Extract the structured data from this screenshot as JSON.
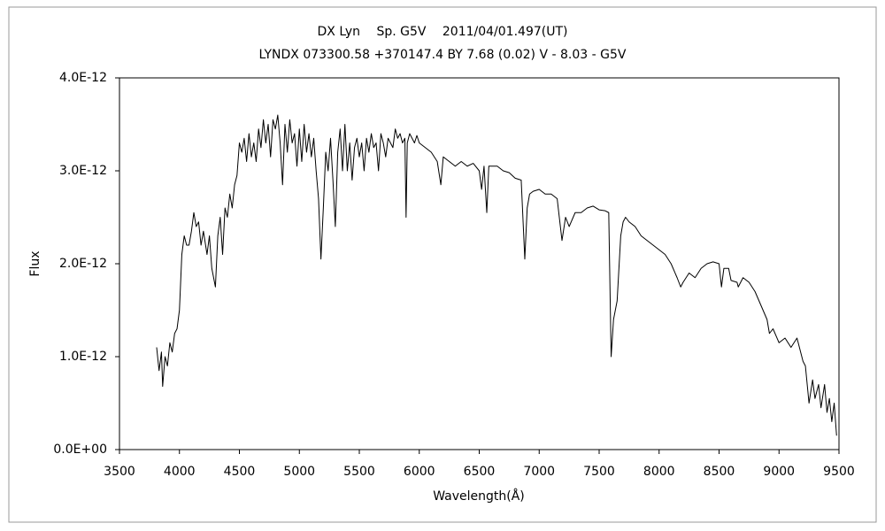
{
  "chart_data": {
    "type": "line",
    "title": "DX Lyn　 Sp. G5V　 2011/04/01.497(UT)",
    "subtitle": "LYNDX 073300.58 +370147.4 BY 7.68 (0.02) V - 8.03 - G5V",
    "x_label": "Wavelength(Å)",
    "y_label": "Flux",
    "color": "#000000",
    "grid": false,
    "xlim": [
      3500,
      9500
    ],
    "xticks": [
      3500,
      4000,
      4500,
      5000,
      5500,
      6000,
      6500,
      7000,
      7500,
      8000,
      8500,
      9000,
      9500
    ],
    "ylim": [
      0,
      4e-12
    ],
    "yticks": [
      {
        "value": 0,
        "label": "0.0E+00"
      },
      {
        "value": 1e-12,
        "label": "1.0E-12"
      },
      {
        "value": 2e-12,
        "label": "2.0E-12"
      },
      {
        "value": 3e-12,
        "label": "3.0E-12"
      },
      {
        "value": 4e-12,
        "label": "4.0E-12"
      }
    ],
    "x": [
      3810,
      3830,
      3850,
      3860,
      3880,
      3900,
      3920,
      3940,
      3960,
      3980,
      4000,
      4020,
      4040,
      4060,
      4080,
      4100,
      4120,
      4140,
      4160,
      4180,
      4200,
      4230,
      4250,
      4270,
      4300,
      4320,
      4340,
      4360,
      4380,
      4400,
      4420,
      4440,
      4460,
      4480,
      4500,
      4520,
      4540,
      4560,
      4580,
      4600,
      4620,
      4640,
      4660,
      4680,
      4700,
      4720,
      4740,
      4760,
      4780,
      4800,
      4820,
      4840,
      4860,
      4880,
      4900,
      4920,
      4940,
      4960,
      4980,
      5000,
      5020,
      5040,
      5060,
      5080,
      5100,
      5120,
      5140,
      5160,
      5180,
      5200,
      5220,
      5240,
      5260,
      5280,
      5300,
      5320,
      5340,
      5360,
      5380,
      5400,
      5420,
      5440,
      5460,
      5480,
      5500,
      5520,
      5540,
      5560,
      5580,
      5600,
      5620,
      5640,
      5660,
      5680,
      5700,
      5720,
      5740,
      5760,
      5780,
      5800,
      5820,
      5840,
      5860,
      5880,
      5890,
      5900,
      5920,
      5940,
      5960,
      5980,
      6000,
      6050,
      6100,
      6150,
      6180,
      6200,
      6250,
      6300,
      6350,
      6400,
      6450,
      6500,
      6520,
      6540,
      6563,
      6580,
      6650,
      6700,
      6750,
      6800,
      6850,
      6880,
      6900,
      6920,
      6950,
      7000,
      7050,
      7100,
      7150,
      7190,
      7220,
      7250,
      7300,
      7350,
      7400,
      7450,
      7500,
      7550,
      7580,
      7600,
      7620,
      7650,
      7680,
      7700,
      7720,
      7750,
      7800,
      7850,
      7900,
      7950,
      8000,
      8050,
      8100,
      8150,
      8180,
      8200,
      8250,
      8300,
      8350,
      8400,
      8450,
      8500,
      8520,
      8540,
      8580,
      8600,
      8650,
      8660,
      8700,
      8750,
      8800,
      8850,
      8900,
      8920,
      8950,
      9000,
      9050,
      9100,
      9150,
      9200,
      9220,
      9250,
      9280,
      9300,
      9330,
      9350,
      9380,
      9400,
      9420,
      9440,
      9460,
      9480
    ],
    "values": [
      1.1e-12,
      8.5e-13,
      1.05e-12,
      6.8e-13,
      1e-12,
      9e-13,
      1.15e-12,
      1.05e-12,
      1.25e-12,
      1.3e-12,
      1.5e-12,
      2.1e-12,
      2.3e-12,
      2.2e-12,
      2.2e-12,
      2.35e-12,
      2.55e-12,
      2.4e-12,
      2.45e-12,
      2.2e-12,
      2.35e-12,
      2.1e-12,
      2.3e-12,
      1.95e-12,
      1.75e-12,
      2.3e-12,
      2.5e-12,
      2.1e-12,
      2.6e-12,
      2.5e-12,
      2.75e-12,
      2.6e-12,
      2.85e-12,
      2.95e-12,
      3.3e-12,
      3.2e-12,
      3.35e-12,
      3.1e-12,
      3.4e-12,
      3.15e-12,
      3.3e-12,
      3.1e-12,
      3.45e-12,
      3.25e-12,
      3.55e-12,
      3.3e-12,
      3.5e-12,
      3.15e-12,
      3.55e-12,
      3.45e-12,
      3.6e-12,
      3.3e-12,
      2.85e-12,
      3.5e-12,
      3.2e-12,
      3.55e-12,
      3.3e-12,
      3.4e-12,
      3.05e-12,
      3.45e-12,
      3.1e-12,
      3.5e-12,
      3.2e-12,
      3.4e-12,
      3.15e-12,
      3.35e-12,
      3e-12,
      2.7e-12,
      2.05e-12,
      2.6e-12,
      3.2e-12,
      3e-12,
      3.35e-12,
      2.9e-12,
      2.4e-12,
      3.2e-12,
      3.45e-12,
      3e-12,
      3.5e-12,
      3e-12,
      3.3e-12,
      2.9e-12,
      3.25e-12,
      3.35e-12,
      3.15e-12,
      3.3e-12,
      3e-12,
      3.35e-12,
      3.2e-12,
      3.4e-12,
      3.25e-12,
      3.3e-12,
      3e-12,
      3.4e-12,
      3.3e-12,
      3.15e-12,
      3.35e-12,
      3.3e-12,
      3.25e-12,
      3.45e-12,
      3.35e-12,
      3.4e-12,
      3.3e-12,
      3.35e-12,
      2.5e-12,
      3.3e-12,
      3.4e-12,
      3.35e-12,
      3.3e-12,
      3.38e-12,
      3.3e-12,
      3.25e-12,
      3.2e-12,
      3.1e-12,
      2.85e-12,
      3.15e-12,
      3.1e-12,
      3.05e-12,
      3.1e-12,
      3.05e-12,
      3.08e-12,
      3e-12,
      2.8e-12,
      3.05e-12,
      2.55e-12,
      3.05e-12,
      3.05e-12,
      3e-12,
      2.98e-12,
      2.92e-12,
      2.9e-12,
      2.05e-12,
      2.6e-12,
      2.75e-12,
      2.78e-12,
      2.8e-12,
      2.75e-12,
      2.75e-12,
      2.7e-12,
      2.25e-12,
      2.5e-12,
      2.4e-12,
      2.55e-12,
      2.55e-12,
      2.6e-12,
      2.62e-12,
      2.58e-12,
      2.57e-12,
      2.55e-12,
      1e-12,
      1.4e-12,
      1.6e-12,
      2.3e-12,
      2.45e-12,
      2.5e-12,
      2.45e-12,
      2.4e-12,
      2.3e-12,
      2.25e-12,
      2.2e-12,
      2.15e-12,
      2.1e-12,
      2e-12,
      1.85e-12,
      1.75e-12,
      1.8e-12,
      1.9e-12,
      1.85e-12,
      1.95e-12,
      2e-12,
      2.02e-12,
      2e-12,
      1.75e-12,
      1.95e-12,
      1.95e-12,
      1.82e-12,
      1.8e-12,
      1.75e-12,
      1.85e-12,
      1.8e-12,
      1.7e-12,
      1.55e-12,
      1.4e-12,
      1.25e-12,
      1.3e-12,
      1.15e-12,
      1.2e-12,
      1.1e-12,
      1.2e-12,
      9.5e-13,
      9e-13,
      5e-13,
      7.5e-13,
      5.5e-13,
      7e-13,
      4.5e-13,
      7e-13,
      4e-13,
      5.5e-13,
      3e-13,
      5e-13,
      1.5e-13
    ]
  }
}
